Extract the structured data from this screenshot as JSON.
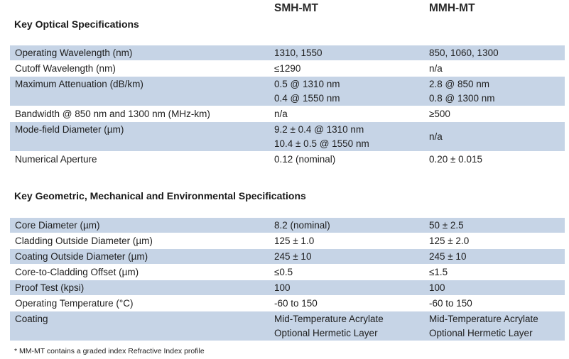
{
  "columns": {
    "smh": "SMH-MT",
    "mmh": "MMH-MT"
  },
  "optical": {
    "title": "Key Optical Specifications",
    "rows": [
      {
        "label": "Operating Wavelength (nm)",
        "smh": [
          "1310, 1550"
        ],
        "mmh": [
          "850, 1060, 1300"
        ]
      },
      {
        "label": "Cutoff Wavelength (nm)",
        "smh": [
          "≤1290"
        ],
        "mmh": [
          "n/a"
        ]
      },
      {
        "label": "Maximum Attenuation (dB/km)",
        "smh": [
          "0.5 @ 1310 nm",
          "0.4 @ 1550 nm"
        ],
        "mmh": [
          "2.8 @ 850 nm",
          "0.8 @ 1300 nm"
        ]
      },
      {
        "label": "Bandwidth @ 850 nm and 1300 nm (MHz-km)",
        "smh": [
          "n/a"
        ],
        "mmh": [
          "≥500"
        ]
      },
      {
        "label": "Mode-field Diameter (µm)",
        "smh": [
          "9.2 ± 0.4 @ 1310 nm",
          "10.4 ± 0.5 @ 1550 nm"
        ],
        "mmh": [
          "n/a"
        ]
      },
      {
        "label": "Numerical Aperture",
        "smh": [
          "0.12 (nominal)"
        ],
        "mmh": [
          "0.20 ± 0.015"
        ]
      }
    ]
  },
  "geometric": {
    "title": "Key Geometric, Mechanical and Environmental Specifications",
    "rows": [
      {
        "label": "Core Diameter (µm)",
        "smh": [
          "8.2 (nominal)"
        ],
        "mmh": [
          "50 ± 2.5"
        ]
      },
      {
        "label": "Cladding Outside Diameter (µm)",
        "smh": [
          "125 ± 1.0"
        ],
        "mmh": [
          "125 ± 2.0"
        ]
      },
      {
        "label": "Coating Outside Diameter (µm)",
        "smh": [
          "245 ± 10"
        ],
        "mmh": [
          "245 ± 10"
        ]
      },
      {
        "label": "Core-to-Cladding Offset (µm)",
        "smh": [
          "≤0.5"
        ],
        "mmh": [
          "≤1.5"
        ]
      },
      {
        "label": "Proof Test (kpsi)",
        "smh": [
          "100"
        ],
        "mmh": [
          "100"
        ]
      },
      {
        "label": "Operating Temperature (°C)",
        "smh": [
          "-60 to 150"
        ],
        "mmh": [
          "-60 to 150"
        ]
      },
      {
        "label": "Coating",
        "smh": [
          "Mid-Temperature Acrylate",
          "Optional Hermetic Layer"
        ],
        "mmh": [
          "Mid-Temperature Acrylate",
          "Optional Hermetic Layer"
        ]
      }
    ]
  },
  "footnote": "* MM-MT contains a graded index Refractive Index profile"
}
